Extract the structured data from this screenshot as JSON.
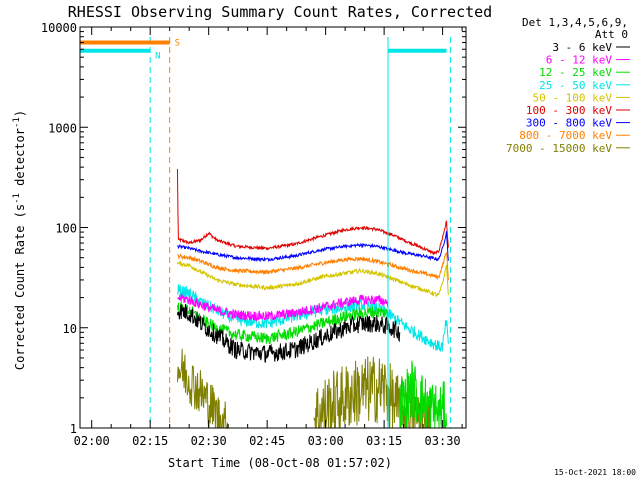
{
  "chart_data": {
    "type": "line",
    "title": "RHESSI Observing Summary Count Rates, Corrected",
    "xlabel": "Start Time (08-Oct-08 01:57:02)",
    "ylabel_main": "Corrected Count Rate (s",
    "ylabel_exp": "-1",
    "ylabel_mid": " detector",
    "ylabel_end": ")",
    "footer": "15-Oct-2021 18:00",
    "x_unit": "minutes after 01:57:02",
    "xlim": [
      0,
      99
    ],
    "ylim": [
      1,
      10000
    ],
    "y_scale": "log",
    "x_ticks": [
      {
        "t": 3,
        "label": "02:00"
      },
      {
        "t": 18,
        "label": "02:15"
      },
      {
        "t": 33,
        "label": "02:30"
      },
      {
        "t": 48,
        "label": "02:45"
      },
      {
        "t": 63,
        "label": "03:00"
      },
      {
        "t": 78,
        "label": "03:15"
      },
      {
        "t": 93,
        "label": "03:30"
      }
    ],
    "y_ticks": [
      {
        "v": 1,
        "label": "1"
      },
      {
        "v": 10,
        "label": "10"
      },
      {
        "v": 100,
        "label": "100"
      },
      {
        "v": 1000,
        "label": "1000"
      },
      {
        "v": 10000,
        "label": "10000"
      }
    ],
    "legend": {
      "header1": "Det 1,3,4,5,6,9,",
      "header2": "Att 0",
      "entries": [
        {
          "label": "3 - 6 keV",
          "color": "#000000"
        },
        {
          "label": "6 - 12 keV",
          "color": "#ff00ff"
        },
        {
          "label": "12 - 25 keV",
          "color": "#00dd00"
        },
        {
          "label": "25 - 50 keV",
          "color": "#00e5e5"
        },
        {
          "label": "50 - 100 keV",
          "color": "#d4c400"
        },
        {
          "label": "100 - 300 keV",
          "color": "#e00000"
        },
        {
          "label": "300 - 800 keV",
          "color": "#0000ff"
        },
        {
          "label": "800 - 7000 keV",
          "color": "#ff8000"
        },
        {
          "label": "7000 - 15000 keV",
          "color": "#808000"
        }
      ]
    },
    "flags": [
      {
        "label": "S",
        "color": "#ff8000",
        "value": 7000,
        "segments": [
          [
            0,
            23
          ]
        ]
      },
      {
        "label": "N",
        "color": "#00e5e5",
        "value": 5800,
        "segments": [
          [
            0,
            18
          ],
          [
            79,
            94
          ]
        ]
      }
    ],
    "night_lines": [
      {
        "t": 0,
        "style": "solid",
        "color": "#00e5e5"
      },
      {
        "t": 18,
        "style": "dashed",
        "color": "#00e5e5"
      },
      {
        "t": 23,
        "style": "dashed",
        "color": "#ff8000"
      },
      {
        "t": 79,
        "style": "solid",
        "color": "#00e5e5"
      },
      {
        "t": 95,
        "style": "dashed",
        "color": "#00e5e5"
      }
    ],
    "series": [
      {
        "name": "100 - 300 keV",
        "color": "#e00000",
        "noise": 0.015,
        "points": [
          [
            25,
            380
          ],
          [
            25.2,
            75
          ],
          [
            26,
            75
          ],
          [
            28,
            70
          ],
          [
            31,
            75
          ],
          [
            33,
            88
          ],
          [
            35,
            75
          ],
          [
            40,
            65
          ],
          [
            48,
            62
          ],
          [
            55,
            68
          ],
          [
            62,
            82
          ],
          [
            68,
            95
          ],
          [
            72,
            100
          ],
          [
            76,
            96
          ],
          [
            80,
            85
          ],
          [
            84,
            72
          ],
          [
            88,
            62
          ],
          [
            91,
            55
          ],
          [
            92,
            58
          ],
          [
            93,
            80
          ],
          [
            94,
            115
          ],
          [
            94.5,
            60
          ]
        ]
      },
      {
        "name": "300 - 800 keV",
        "color": "#0000ff",
        "noise": 0.015,
        "points": [
          [
            25,
            65
          ],
          [
            28,
            62
          ],
          [
            31,
            58
          ],
          [
            35,
            54
          ],
          [
            40,
            50
          ],
          [
            48,
            48
          ],
          [
            55,
            52
          ],
          [
            62,
            60
          ],
          [
            68,
            65
          ],
          [
            72,
            67
          ],
          [
            76,
            65
          ],
          [
            80,
            60
          ],
          [
            84,
            55
          ],
          [
            88,
            52
          ],
          [
            92,
            48
          ],
          [
            93,
            62
          ],
          [
            94,
            90
          ],
          [
            94.5,
            45
          ]
        ]
      },
      {
        "name": "800 - 7000 keV",
        "color": "#ff8000",
        "noise": 0.02,
        "points": [
          [
            25,
            52
          ],
          [
            28,
            50
          ],
          [
            31,
            46
          ],
          [
            35,
            40
          ],
          [
            40,
            37
          ],
          [
            48,
            36
          ],
          [
            55,
            39
          ],
          [
            62,
            44
          ],
          [
            68,
            48
          ],
          [
            72,
            49
          ],
          [
            76,
            46
          ],
          [
            80,
            42
          ],
          [
            84,
            38
          ],
          [
            88,
            35
          ],
          [
            92,
            32
          ],
          [
            93,
            42
          ],
          [
            94,
            58
          ],
          [
            94.5,
            30
          ]
        ]
      },
      {
        "name": "50 - 100 keV",
        "color": "#d4c400",
        "noise": 0.02,
        "points": [
          [
            25,
            44
          ],
          [
            28,
            42
          ],
          [
            31,
            36
          ],
          [
            35,
            30
          ],
          [
            40,
            27
          ],
          [
            48,
            25
          ],
          [
            55,
            27
          ],
          [
            62,
            32
          ],
          [
            68,
            35
          ],
          [
            72,
            37
          ],
          [
            76,
            35
          ],
          [
            80,
            31
          ],
          [
            84,
            27
          ],
          [
            88,
            24
          ],
          [
            92,
            21
          ],
          [
            93,
            28
          ],
          [
            94,
            42
          ],
          [
            94.5,
            20
          ]
        ]
      },
      {
        "name": "25 - 50 keV",
        "color": "#00e5e5",
        "noise": 0.06,
        "points": [
          [
            25,
            24
          ],
          [
            28,
            22
          ],
          [
            31,
            18
          ],
          [
            35,
            15
          ],
          [
            40,
            12
          ],
          [
            48,
            11
          ],
          [
            55,
            13
          ],
          [
            62,
            15
          ],
          [
            68,
            16
          ],
          [
            72,
            17
          ],
          [
            76,
            16
          ],
          [
            80,
            13
          ],
          [
            84,
            10
          ],
          [
            88,
            8
          ],
          [
            92,
            6.5
          ],
          [
            93,
            6.5
          ],
          [
            94,
            12
          ],
          [
            94.5,
            6
          ]
        ]
      },
      {
        "name": "6 - 12 keV",
        "color": "#ff00ff",
        "noise": 0.05,
        "points": [
          [
            25,
            20
          ],
          [
            28,
            19
          ],
          [
            31,
            17
          ],
          [
            35,
            15
          ],
          [
            40,
            13.5
          ],
          [
            48,
            13
          ],
          [
            55,
            14
          ],
          [
            62,
            16
          ],
          [
            68,
            18
          ],
          [
            72,
            19
          ],
          [
            76,
            19
          ],
          [
            79,
            18
          ]
        ]
      },
      {
        "name": "12 - 25 keV",
        "color": "#00dd00",
        "noise": 0.06,
        "points": [
          [
            25,
            16
          ],
          [
            28,
            15
          ],
          [
            31,
            12
          ],
          [
            35,
            10
          ],
          [
            40,
            8.5
          ],
          [
            48,
            7.8
          ],
          [
            55,
            9
          ],
          [
            62,
            11
          ],
          [
            68,
            13
          ],
          [
            72,
            14
          ],
          [
            76,
            14.5
          ],
          [
            79,
            14
          ]
        ]
      },
      {
        "name": "3 - 6 keV",
        "color": "#000000",
        "noise": 0.09,
        "points": [
          [
            25,
            15
          ],
          [
            28,
            14
          ],
          [
            31,
            11
          ],
          [
            35,
            8.5
          ],
          [
            40,
            6
          ],
          [
            48,
            5.5
          ],
          [
            55,
            6
          ],
          [
            62,
            8
          ],
          [
            68,
            10
          ],
          [
            72,
            11
          ],
          [
            76,
            11
          ],
          [
            80,
            10
          ],
          [
            82,
            9
          ]
        ]
      },
      {
        "name": "7000 - 15000 keV",
        "color": "#808000",
        "noise": 0.25,
        "points": [
          [
            25,
            4
          ],
          [
            27,
            3.5
          ],
          [
            30,
            2.5
          ],
          [
            33,
            1.8
          ],
          [
            36,
            1.2
          ],
          [
            38,
            1.0
          ]
        ]
      },
      {
        "name": "7000 - 15000 keV",
        "color": "#808000",
        "noise": 0.35,
        "points": [
          [
            60,
            1.3
          ],
          [
            66,
            1.8
          ],
          [
            70,
            2.2
          ],
          [
            74,
            2.4
          ],
          [
            78,
            2.5
          ],
          [
            81,
            1.6
          ],
          [
            84,
            1.4
          ],
          [
            90,
            1.2
          ]
        ]
      },
      {
        "name": "12 - 25 keV",
        "color": "#00dd00",
        "noise": 0.3,
        "points": [
          [
            82,
            1.5
          ],
          [
            85,
            2.5
          ],
          [
            88,
            1.8
          ],
          [
            92,
            1.4
          ],
          [
            94,
            1.5
          ]
        ]
      }
    ]
  }
}
